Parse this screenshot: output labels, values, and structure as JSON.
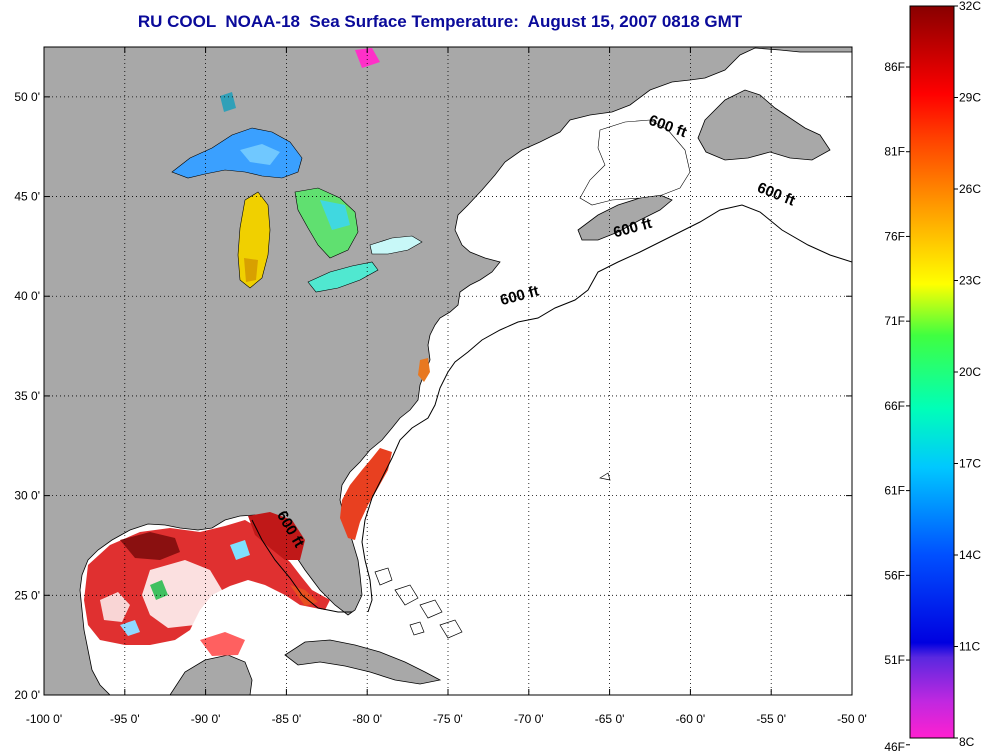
{
  "title": "RU COOL  NOAA-18  Sea Surface Temperature:  August 15, 2007 0818 GMT",
  "map": {
    "lon_range": [
      -100,
      -50
    ],
    "lat_range": [
      20,
      52.5
    ],
    "x_ticks": [
      {
        "value": -100,
        "label": "-100 0'"
      },
      {
        "value": -95,
        "label": "-95 0'"
      },
      {
        "value": -90,
        "label": "-90 0'"
      },
      {
        "value": -85,
        "label": "-85 0'"
      },
      {
        "value": -80,
        "label": "-80 0'"
      },
      {
        "value": -75,
        "label": "-75 0'"
      },
      {
        "value": -70,
        "label": "-70 0'"
      },
      {
        "value": -65,
        "label": "-65 0'"
      },
      {
        "value": -60,
        "label": "-60 0'"
      },
      {
        "value": -55,
        "label": "-55 0'"
      },
      {
        "value": -50,
        "label": "-50 0'"
      }
    ],
    "y_ticks": [
      {
        "value": 20,
        "label": "20 0'"
      },
      {
        "value": 25,
        "label": "25 0'"
      },
      {
        "value": 30,
        "label": "30 0'"
      },
      {
        "value": 35,
        "label": "35 0'"
      },
      {
        "value": 40,
        "label": "40 0'"
      },
      {
        "value": 45,
        "label": "45 0'"
      },
      {
        "value": 50,
        "label": "50 0'"
      }
    ],
    "grid": "dotted",
    "land_color": "#a8a8a8",
    "ocean_color": "#ffffff",
    "contour_labels": [
      {
        "text": "600 ft",
        "lon": -61.5,
        "lat": 48.3,
        "rotate": 20
      },
      {
        "text": "600 ft",
        "lon": -54.8,
        "lat": 44.9,
        "rotate": 22
      },
      {
        "text": "600 ft",
        "lon": -63.5,
        "lat": 43.2,
        "rotate": -15
      },
      {
        "text": "600 ft",
        "lon": -70.5,
        "lat": 39.8,
        "rotate": -15
      },
      {
        "text": "600 ft",
        "lon": -85.0,
        "lat": 28.2,
        "rotate": 60
      }
    ]
  },
  "colorbar": {
    "temps_c": [
      8,
      32
    ],
    "celsius_labels": [
      "32C",
      "29C",
      "26C",
      "23C",
      "20C",
      "17C",
      "14C",
      "11C",
      "8C"
    ],
    "fahrenheit_labels": [
      "86F",
      "81F",
      "76F",
      "71F",
      "66F",
      "61F",
      "56F",
      "51F",
      "46F"
    ],
    "fahrenheit_values": [
      86,
      81,
      76,
      71,
      66,
      61,
      56,
      51,
      46
    ],
    "colors": [
      "#ff20d0",
      "#7030e0",
      "#0000e0",
      "#0060ff",
      "#00d0ff",
      "#00ffb0",
      "#60ff30",
      "#ffff00",
      "#ffa000",
      "#ff4000",
      "#ff0000",
      "#8a0000"
    ]
  }
}
